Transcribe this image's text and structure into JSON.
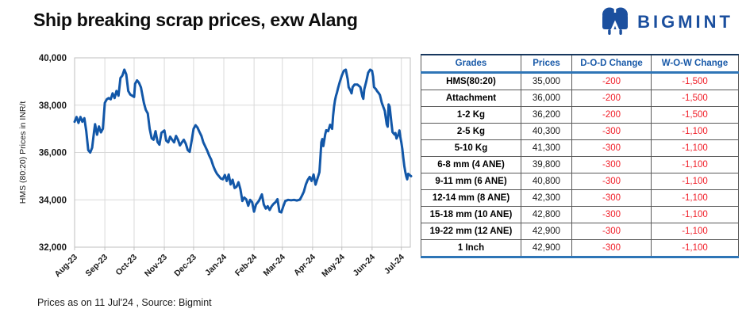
{
  "header": {
    "title": "Ship breaking scrap prices, exw Alang",
    "logo_text": "BIGMINT",
    "brand_color": "#1b4f9e"
  },
  "footer": {
    "note": "Prices as on 11 Jul'24 , Source:  Bigmint"
  },
  "chart_data": {
    "type": "line",
    "title": "",
    "xlabel": "",
    "ylabel": "HMS (80:20) Prices in INR/t",
    "ylim": [
      32000,
      40000
    ],
    "ytick_step": 2000,
    "ytick_labels": [
      "32,000",
      "34,000",
      "36,000",
      "38,000",
      "40,000"
    ],
    "xtick_labels": [
      "Aug-23",
      "Sep-23",
      "Oct-23",
      "Nov-23",
      "Dec-23",
      "Jan-24",
      "Feb-24",
      "Mar-24",
      "Apr-24",
      "May-24",
      "Jun-24",
      "Jul-24"
    ],
    "xtick_days": [
      0,
      31,
      61,
      92,
      122,
      153,
      184,
      213,
      244,
      274,
      305,
      335
    ],
    "x_total_days": 345,
    "grid": true,
    "legend": "none",
    "line_color": "#1257a8",
    "grid_color": "#d9d9d9",
    "border_color": "#bfbfbf",
    "series": [
      {
        "name": "HMS (80:20) Prices in INR/t",
        "points": [
          [
            0,
            37300
          ],
          [
            2,
            37500
          ],
          [
            4,
            37250
          ],
          [
            6,
            37500
          ],
          [
            8,
            37300
          ],
          [
            10,
            37450
          ],
          [
            12,
            36900
          ],
          [
            14,
            36100
          ],
          [
            16,
            36000
          ],
          [
            18,
            36200
          ],
          [
            20,
            36900
          ],
          [
            21,
            37200
          ],
          [
            23,
            36750
          ],
          [
            25,
            37100
          ],
          [
            27,
            36850
          ],
          [
            29,
            37000
          ],
          [
            31,
            38100
          ],
          [
            33,
            38250
          ],
          [
            35,
            38300
          ],
          [
            37,
            38250
          ],
          [
            39,
            38500
          ],
          [
            41,
            38300
          ],
          [
            43,
            38600
          ],
          [
            45,
            38400
          ],
          [
            47,
            39150
          ],
          [
            49,
            39250
          ],
          [
            51,
            39500
          ],
          [
            53,
            39300
          ],
          [
            55,
            38600
          ],
          [
            57,
            38450
          ],
          [
            59,
            38400
          ],
          [
            61,
            38350
          ],
          [
            62,
            38900
          ],
          [
            64,
            39050
          ],
          [
            66,
            38950
          ],
          [
            68,
            38750
          ],
          [
            71,
            38100
          ],
          [
            73,
            37800
          ],
          [
            75,
            37650
          ],
          [
            77,
            37000
          ],
          [
            79,
            36600
          ],
          [
            81,
            36540
          ],
          [
            83,
            36900
          ],
          [
            85,
            36450
          ],
          [
            87,
            36330
          ],
          [
            89,
            36830
          ],
          [
            92,
            36930
          ],
          [
            94,
            36500
          ],
          [
            96,
            36430
          ],
          [
            98,
            36670
          ],
          [
            100,
            36540
          ],
          [
            102,
            36430
          ],
          [
            104,
            36700
          ],
          [
            106,
            36540
          ],
          [
            108,
            36300
          ],
          [
            110,
            36430
          ],
          [
            112,
            36540
          ],
          [
            114,
            36370
          ],
          [
            116,
            36100
          ],
          [
            118,
            36030
          ],
          [
            120,
            36500
          ],
          [
            122,
            37000
          ],
          [
            124,
            37150
          ],
          [
            126,
            37050
          ],
          [
            128,
            36870
          ],
          [
            130,
            36700
          ],
          [
            132,
            36430
          ],
          [
            134,
            36250
          ],
          [
            136,
            36080
          ],
          [
            138,
            35870
          ],
          [
            140,
            35700
          ],
          [
            142,
            35450
          ],
          [
            144,
            35250
          ],
          [
            146,
            35100
          ],
          [
            148,
            35000
          ],
          [
            150,
            34900
          ],
          [
            152,
            34870
          ],
          [
            154,
            35050
          ],
          [
            156,
            34800
          ],
          [
            158,
            35070
          ],
          [
            160,
            34650
          ],
          [
            162,
            34850
          ],
          [
            164,
            34500
          ],
          [
            166,
            34550
          ],
          [
            168,
            34740
          ],
          [
            170,
            34450
          ],
          [
            172,
            33950
          ],
          [
            174,
            34100
          ],
          [
            176,
            34020
          ],
          [
            178,
            33750
          ],
          [
            180,
            34000
          ],
          [
            182,
            33900
          ],
          [
            184,
            33500
          ],
          [
            186,
            33800
          ],
          [
            189,
            33960
          ],
          [
            192,
            34230
          ],
          [
            194,
            33800
          ],
          [
            196,
            33630
          ],
          [
            198,
            33730
          ],
          [
            200,
            33570
          ],
          [
            202,
            33730
          ],
          [
            204,
            33830
          ],
          [
            206,
            33900
          ],
          [
            208,
            34030
          ],
          [
            210,
            33500
          ],
          [
            212,
            33470
          ],
          [
            214,
            33730
          ],
          [
            216,
            33950
          ],
          [
            219,
            34000
          ],
          [
            222,
            33980
          ],
          [
            225,
            34000
          ],
          [
            228,
            33970
          ],
          [
            231,
            34010
          ],
          [
            233,
            34170
          ],
          [
            235,
            34340
          ],
          [
            237,
            34640
          ],
          [
            239,
            34840
          ],
          [
            241,
            34970
          ],
          [
            243,
            34800
          ],
          [
            245,
            35070
          ],
          [
            247,
            34640
          ],
          [
            249,
            34900
          ],
          [
            251,
            35170
          ],
          [
            252,
            35770
          ],
          [
            253,
            36430
          ],
          [
            254,
            36570
          ],
          [
            255,
            36270
          ],
          [
            257,
            36770
          ],
          [
            258,
            36940
          ],
          [
            260,
            36900
          ],
          [
            262,
            37170
          ],
          [
            264,
            37000
          ],
          [
            265,
            37550
          ],
          [
            266,
            37930
          ],
          [
            267,
            38200
          ],
          [
            268,
            38400
          ],
          [
            269,
            38530
          ],
          [
            270,
            38700
          ],
          [
            272,
            39000
          ],
          [
            274,
            39250
          ],
          [
            276,
            39450
          ],
          [
            278,
            39500
          ],
          [
            280,
            39100
          ],
          [
            281,
            38760
          ],
          [
            283,
            38600
          ],
          [
            284,
            38500
          ],
          [
            285,
            38760
          ],
          [
            287,
            38870
          ],
          [
            290,
            38870
          ],
          [
            293,
            38760
          ],
          [
            295,
            38370
          ],
          [
            296,
            38270
          ],
          [
            297,
            38670
          ],
          [
            299,
            39000
          ],
          [
            301,
            39370
          ],
          [
            303,
            39500
          ],
          [
            305,
            39450
          ],
          [
            306,
            39200
          ],
          [
            307,
            38760
          ],
          [
            309,
            38670
          ],
          [
            310,
            38600
          ],
          [
            312,
            38500
          ],
          [
            313,
            38430
          ],
          [
            315,
            38100
          ],
          [
            317,
            37870
          ],
          [
            318,
            37760
          ],
          [
            319,
            37490
          ],
          [
            320,
            37190
          ],
          [
            321,
            37090
          ],
          [
            322,
            38030
          ],
          [
            323,
            37930
          ],
          [
            325,
            37190
          ],
          [
            326,
            36860
          ],
          [
            328,
            36760
          ],
          [
            329,
            36820
          ],
          [
            330,
            36590
          ],
          [
            332,
            36760
          ],
          [
            333,
            36930
          ],
          [
            334,
            36650
          ],
          [
            335,
            36430
          ],
          [
            336,
            36160
          ],
          [
            337,
            35770
          ],
          [
            338,
            35440
          ],
          [
            339,
            35200
          ],
          [
            340,
            35000
          ],
          [
            341,
            34870
          ],
          [
            342,
            35100
          ],
          [
            344,
            35030
          ],
          [
            345,
            35000
          ]
        ]
      }
    ]
  },
  "table": {
    "headers": [
      "Grades",
      "Prices",
      "D-O-D Change",
      "W-O-W Change"
    ],
    "rows": [
      [
        "HMS(80:20)",
        "35,000",
        "-200",
        "-1,500"
      ],
      [
        "Attachment",
        "36,000",
        "-200",
        "-1,500"
      ],
      [
        "1-2 Kg",
        "36,200",
        "-200",
        "-1,500"
      ],
      [
        "2-5 Kg",
        "40,300",
        "-300",
        "-1,100"
      ],
      [
        "5-10 Kg",
        "41,300",
        "-300",
        "-1,100"
      ],
      [
        "6-8 mm (4 ANE)",
        "39,800",
        "-300",
        "-1,100"
      ],
      [
        "9-11 mm (6 ANE)",
        "40,800",
        "-300",
        "-1,100"
      ],
      [
        "12-14 mm (8 ANE)",
        "42,300",
        "-300",
        "-1,100"
      ],
      [
        "15-18 mm (10 ANE)",
        "42,800",
        "-300",
        "-1,100"
      ],
      [
        "19-22 mm (12 ANE)",
        "42,900",
        "-300",
        "-1,100"
      ],
      [
        "1 Inch",
        "42,900",
        "-300",
        "-1,100"
      ]
    ]
  }
}
